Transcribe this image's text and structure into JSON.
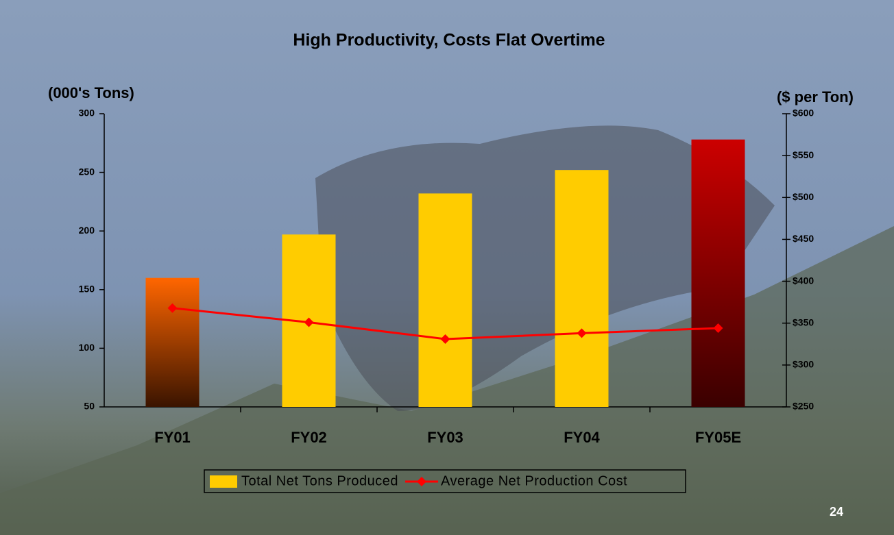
{
  "chart_data": {
    "type": "bar-line",
    "title": "High Productivity, Costs Flat Overtime",
    "ylabel": "(000's Tons)",
    "y2label": "($ per Ton)",
    "categories": [
      "FY01",
      "FY02",
      "FY03",
      "FY04",
      "FY05E"
    ],
    "series": [
      {
        "name": "Total Net Tons Produced",
        "type": "bar",
        "color": "#ffcc00",
        "colors": [
          [
            "#ff6600",
            "#3a1400"
          ],
          [
            "#ffcc00",
            "#ffcc00"
          ],
          [
            "#ffcc00",
            "#ffcc00"
          ],
          [
            "#ffcc00",
            "#ffcc00"
          ],
          [
            "#cc0000",
            "#3a0000"
          ]
        ],
        "values": [
          160,
          197,
          232,
          252,
          278
        ]
      },
      {
        "name": "Average Net Production Cost",
        "type": "line",
        "color": "#ff0000",
        "axis": "y2",
        "values": [
          368,
          351,
          331,
          338,
          344
        ]
      }
    ],
    "ylim": [
      50,
      300
    ],
    "yticks": [
      50,
      100,
      150,
      200,
      250,
      300
    ],
    "y2lim": [
      250,
      600
    ],
    "y2ticks": [
      {
        "value": 250,
        "label": "$250"
      },
      {
        "value": 300,
        "label": "$300"
      },
      {
        "value": 350,
        "label": "$350"
      },
      {
        "value": 400,
        "label": "$400"
      },
      {
        "value": 450,
        "label": "$450"
      },
      {
        "value": 500,
        "label": "$500"
      },
      {
        "value": 550,
        "label": "$550"
      },
      {
        "value": 600,
        "label": "$600"
      }
    ],
    "legend": "bottom"
  },
  "page_number": "24"
}
